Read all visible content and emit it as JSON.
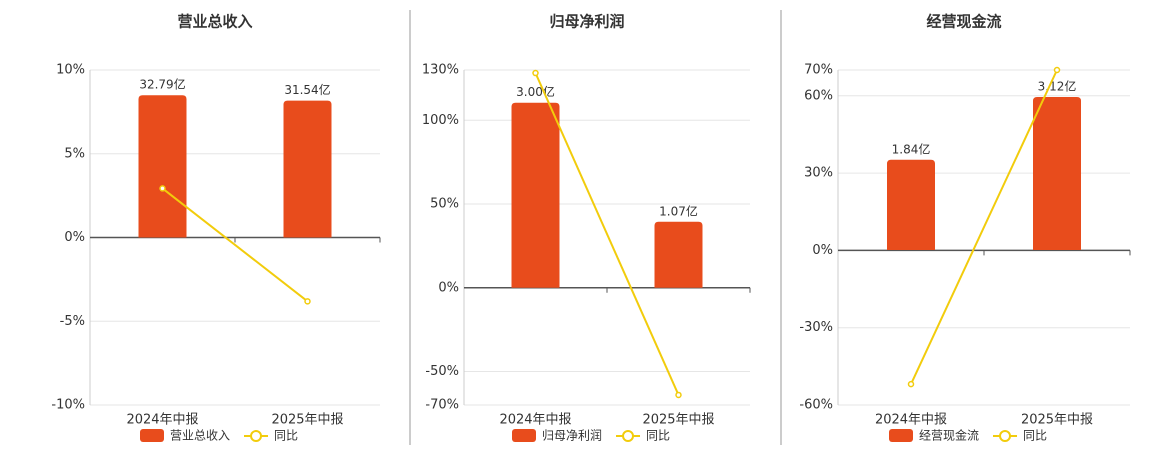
{
  "chart_data": [
    {
      "type": "combo",
      "title": "营业总收入",
      "categories": [
        "2024年中报",
        "2025年中报"
      ],
      "series": [
        {
          "name": "营业总收入",
          "color": "#e84c1c",
          "axis": "y2",
          "values": [
            32.79,
            31.54
          ],
          "value_labels": [
            "32.79亿",
            "31.54亿"
          ]
        },
        {
          "name": "同比",
          "color": "#f2cc0c",
          "values": [
            2.93,
            -3.81
          ]
        }
      ],
      "ylim": [
        -10,
        10
      ],
      "yticks": [
        {
          "value": -10,
          "label": "-10%"
        },
        {
          "value": -5,
          "label": "-5%"
        },
        {
          "value": 0,
          "label": "0%"
        },
        {
          "value": 5,
          "label": "5%"
        },
        {
          "value": 10,
          "label": "10%"
        }
      ],
      "y2lim": [
        -38.6,
        38.6
      ],
      "grid": true
    },
    {
      "type": "combo",
      "title": "归母净利润",
      "categories": [
        "2024年中报",
        "2025年中报"
      ],
      "series": [
        {
          "name": "归母净利润",
          "color": "#e84c1c",
          "axis": "y2",
          "values": [
            3.0,
            1.07
          ],
          "value_labels": [
            "3.00亿",
            "1.07亿"
          ]
        },
        {
          "name": "同比",
          "color": "#f2cc0c",
          "values": [
            128.2,
            -64
          ]
        }
      ],
      "ylim": [
        -70,
        130
      ],
      "yticks": [
        {
          "value": -70,
          "label": "-70%"
        },
        {
          "value": -50,
          "label": "-50%"
        },
        {
          "value": 0,
          "label": "0%"
        },
        {
          "value": 50,
          "label": "50%"
        },
        {
          "value": 100,
          "label": "100%"
        },
        {
          "value": 130,
          "label": "130%"
        }
      ],
      "y2lim": [
        -1.9,
        3.53
      ],
      "grid": true
    },
    {
      "type": "combo",
      "title": "经营现金流",
      "categories": [
        "2024年中报",
        "2025年中报"
      ],
      "series": [
        {
          "name": "经营现金流",
          "color": "#e84c1c",
          "axis": "y2",
          "values": [
            1.84,
            3.12
          ],
          "value_labels": [
            "1.84亿",
            "3.12亿"
          ]
        },
        {
          "name": "同比",
          "color": "#f2cc0c",
          "values": [
            -51.9,
            70
          ]
        }
      ],
      "ylim": [
        -60,
        70
      ],
      "yticks": [
        {
          "value": -60,
          "label": "-60%"
        },
        {
          "value": -30,
          "label": "-30%"
        },
        {
          "value": 0,
          "label": "0%"
        },
        {
          "value": 30,
          "label": "30%"
        },
        {
          "value": 60,
          "label": "60%"
        },
        {
          "value": 70,
          "label": "70%"
        }
      ],
      "y2lim": [
        -3.16,
        3.67
      ],
      "grid": true
    }
  ]
}
